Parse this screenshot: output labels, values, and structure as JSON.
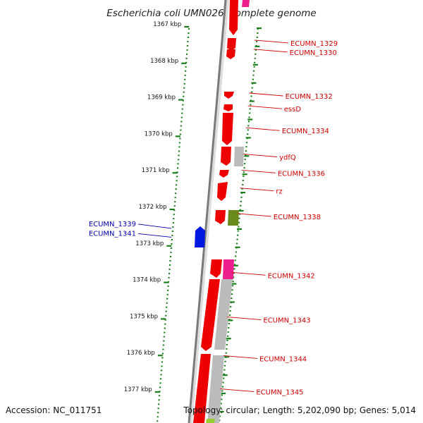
{
  "title": "Escherichia coli UMN026, complete genome",
  "accession": "Accession: NC_011751",
  "topology": "Topology: circular; Length: 5,202,090 bp; Genes: 5,014",
  "colors": {
    "label_right": "#cc0000",
    "label_left": "#0000aa",
    "kbp_tick": "#1a7f1a",
    "backbone": "#888888",
    "gene_red": "#ee0000",
    "gene_pink": "#ee1f8c",
    "gene_grey": "#aaaaaa",
    "gene_olive": "#6a8a1e",
    "gene_blue": "#0018e0",
    "gene_lime": "#99cc33"
  },
  "kbp_ticks": [
    {
      "kb": 1367,
      "label": "1367 kbp"
    },
    {
      "kb": 1368,
      "label": "1368 kbp"
    },
    {
      "kb": 1369,
      "label": "1369 kbp"
    },
    {
      "kb": 1370,
      "label": "1370 kbp"
    },
    {
      "kb": 1371,
      "label": "1371 kbp"
    },
    {
      "kb": 1372,
      "label": "1372 kbp"
    },
    {
      "kb": 1373,
      "label": "1373 kbp"
    },
    {
      "kb": 1374,
      "label": "1374 kbp"
    },
    {
      "kb": 1375,
      "label": "1375 kbp"
    },
    {
      "kb": 1376,
      "label": "1376 kbp"
    },
    {
      "kb": 1377,
      "label": "1377 kbp"
    }
  ],
  "genes_right": [
    {
      "name": "ECUMN_1329",
      "kb": 1367.5
    },
    {
      "name": "ECUMN_1330",
      "kb": 1367.75
    },
    {
      "name": "ECUMN_1332",
      "kb": 1368.95
    },
    {
      "name": "essD",
      "kb": 1369.3
    },
    {
      "name": "ECUMN_1334",
      "kb": 1369.9
    },
    {
      "name": "ydfQ",
      "kb": 1370.62
    },
    {
      "name": "ECUMN_1336",
      "kb": 1371.06
    },
    {
      "name": "rz",
      "kb": 1371.55
    },
    {
      "name": "ECUMN_1338",
      "kb": 1372.25
    },
    {
      "name": "ECUMN_1342",
      "kb": 1373.86
    },
    {
      "name": "ECUMN_1343",
      "kb": 1375.08
    },
    {
      "name": "ECUMN_1344",
      "kb": 1376.14
    },
    {
      "name": "ECUMN_1345",
      "kb": 1377.05
    }
  ],
  "genes_left": [
    {
      "name": "ECUMN_1339",
      "kb": 1372.52
    },
    {
      "name": "ECUMN_1341",
      "kb": 1372.78
    }
  ]
}
